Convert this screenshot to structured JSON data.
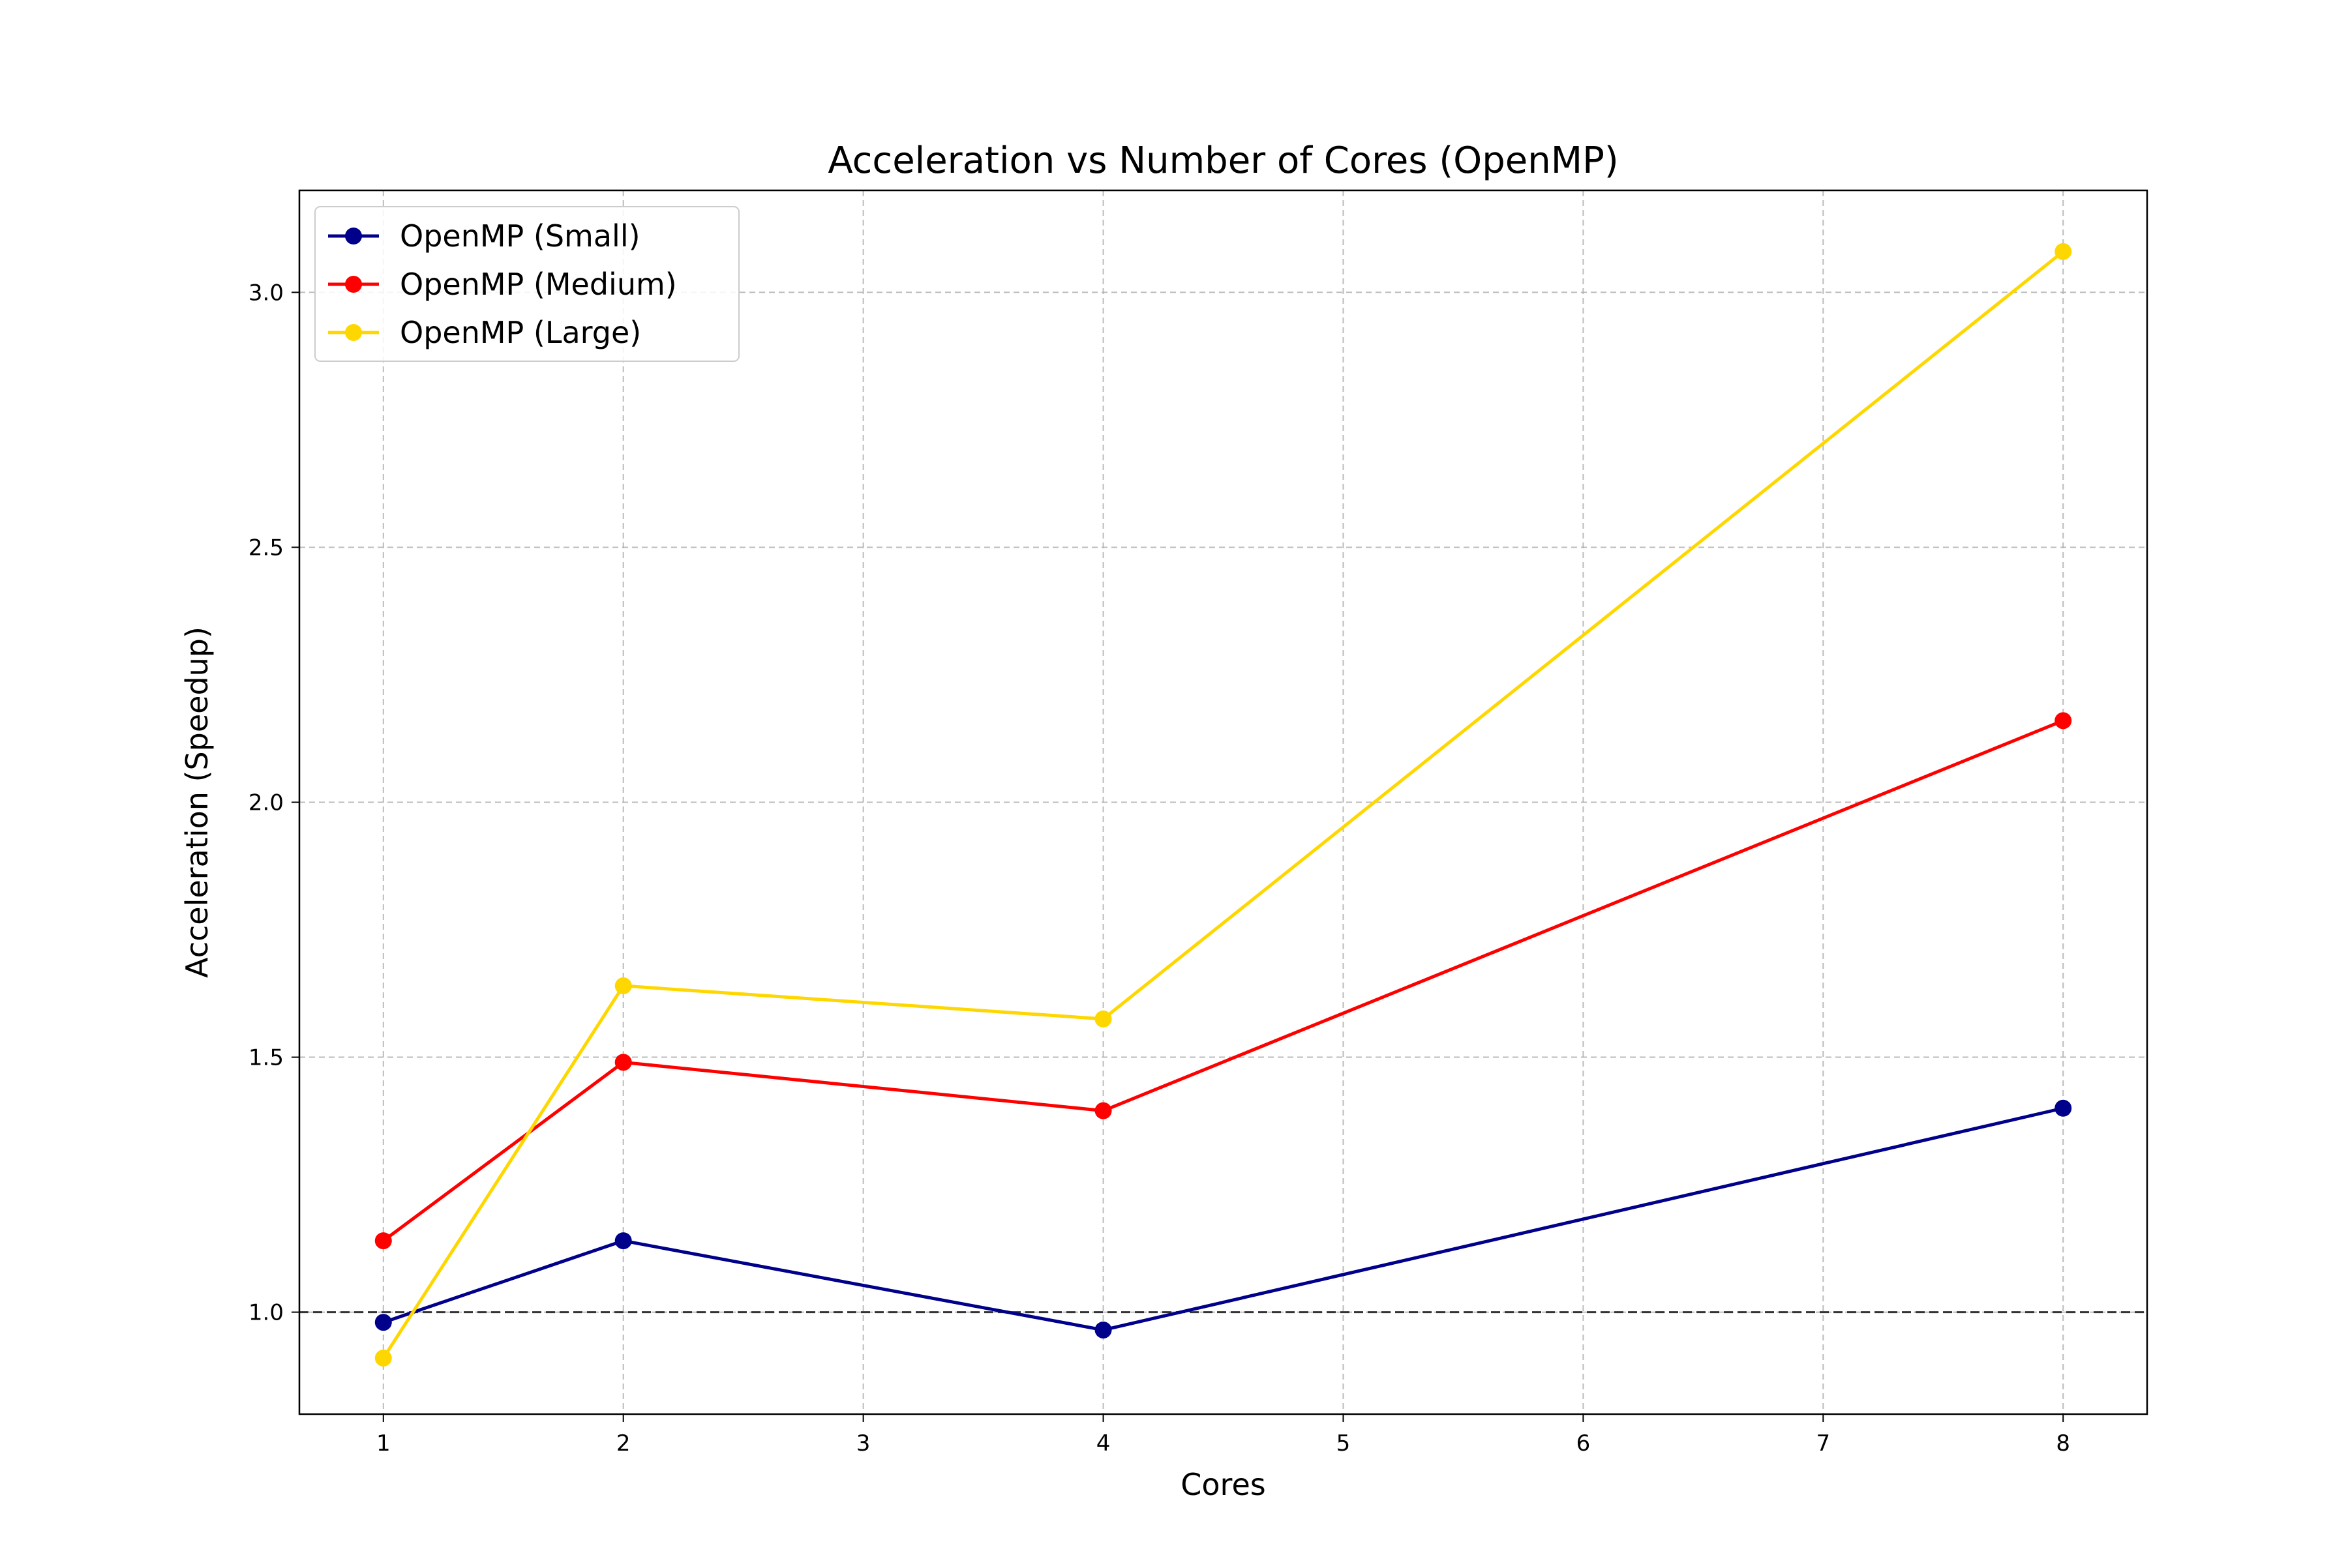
{
  "chart_data": {
    "type": "line",
    "title": "Acceleration vs Number of Cores (OpenMP)",
    "xlabel": "Cores",
    "ylabel": "Acceleration (Speedup)",
    "xlim": [
      0.65,
      8.35
    ],
    "ylim": [
      0.8,
      3.2
    ],
    "x_ticks": [
      1,
      2,
      3,
      4,
      5,
      6,
      7,
      8
    ],
    "y_ticks": [
      1.0,
      1.5,
      2.0,
      2.5,
      3.0
    ],
    "y_tick_labels": [
      "1.0",
      "1.5",
      "2.0",
      "2.5",
      "3.0"
    ],
    "grid": true,
    "legend_position": "top-left",
    "reference_line": {
      "y": 1.0,
      "style": "dashed",
      "color": "#333333"
    },
    "x": [
      1,
      2,
      4,
      8
    ],
    "series": [
      {
        "name": "OpenMP (Small)",
        "color": "#00008B",
        "values": [
          0.98,
          1.14,
          0.965,
          1.4
        ]
      },
      {
        "name": "OpenMP (Medium)",
        "color": "#FF0000",
        "values": [
          1.14,
          1.49,
          1.395,
          2.16
        ]
      },
      {
        "name": "OpenMP (Large)",
        "color": "#FFD700",
        "values": [
          0.91,
          1.64,
          1.575,
          3.08
        ]
      }
    ]
  }
}
